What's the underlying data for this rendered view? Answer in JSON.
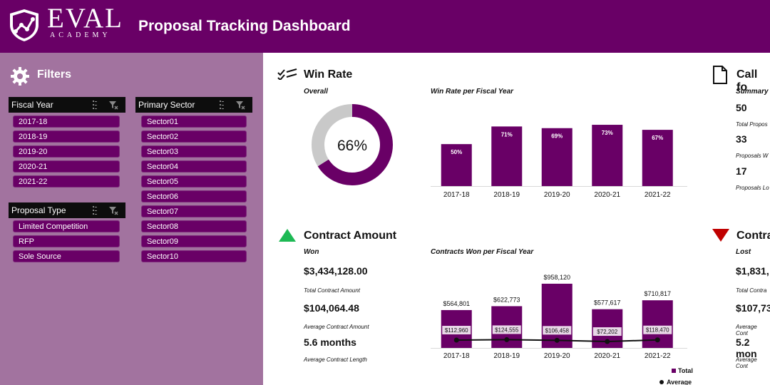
{
  "header": {
    "logo_main": "EVAL",
    "logo_sub": "ACADEMY",
    "title": "Proposal Tracking Dashboard"
  },
  "colors": {
    "purple": "#690066",
    "sidebar": "#a2739f",
    "grey": "#c9c9c9",
    "green": "#1db954",
    "red": "#c00000"
  },
  "filters": {
    "title": "Filters",
    "fiscal_year": {
      "label": "Fiscal Year",
      "items": [
        "2017-18",
        "2018-19",
        "2019-20",
        "2020-21",
        "2021-22"
      ]
    },
    "proposal_type": {
      "label": "Proposal Type",
      "items": [
        "Limited Competition",
        "RFP",
        "Sole Source"
      ]
    },
    "primary_sector": {
      "label": "Primary Sector",
      "items": [
        "Sector01",
        "Sector02",
        "Sector03",
        "Sector04",
        "Sector05",
        "Sector06",
        "Sector07",
        "Sector08",
        "Sector09",
        "Sector10"
      ]
    }
  },
  "win_rate": {
    "title": "Win Rate",
    "overall_label": "Overall",
    "overall_value": "66%",
    "chart_title": "Win Rate per Fiscal Year"
  },
  "call_for": {
    "title": "Call fo",
    "summary_label": "Summary",
    "total_value": "50",
    "total_label": "Total Propos",
    "won_value": "33",
    "won_label": "Proposals W",
    "lost_value": "17",
    "lost_label": "Proposals Lo"
  },
  "contract_amount": {
    "title": "Contract Amount",
    "won_label": "Won",
    "total_value": "$3,434,128.00",
    "total_label": "Total Contract Amount",
    "avg_value": "$104,064.48",
    "avg_label": "Average Contract Amount",
    "length_value": "5.6 months",
    "length_label": "Average Contract Length",
    "chart_title": "Contracts Won per Fiscal Year"
  },
  "contract_lost": {
    "title": "Contra",
    "lost_label": "Lost",
    "total_value": "$1,831,",
    "total_label": "Total Contra",
    "avg_value": "$107,73",
    "avg_label": "Average Cont",
    "length_value": "5.2 mon",
    "length_label": "Average Cont"
  },
  "chart_data": [
    {
      "type": "pie",
      "subtitle": "Overall",
      "values": [
        66,
        34
      ],
      "center_label": "66%"
    },
    {
      "type": "bar",
      "title": "Win Rate per Fiscal Year",
      "categories": [
        "2017-18",
        "2018-19",
        "2019-20",
        "2020-21",
        "2021-22"
      ],
      "values": [
        50,
        71,
        69,
        73,
        67
      ],
      "labels": [
        "50%",
        "71%",
        "69%",
        "73%",
        "67%"
      ],
      "ylim": [
        0,
        100
      ]
    },
    {
      "type": "bar",
      "title": "Contracts Won per Fiscal Year",
      "categories": [
        "2017-18",
        "2018-19",
        "2019-20",
        "2020-21",
        "2021-22"
      ],
      "series": [
        {
          "name": "Total",
          "values": [
            564801,
            622773,
            958120,
            577617,
            710817
          ],
          "labels": [
            "$564,801",
            "$622,773",
            "$958,120",
            "$577,617",
            "$710,817"
          ]
        },
        {
          "name": "Average",
          "values": [
            112960,
            124555,
            106458,
            72202,
            118470
          ],
          "labels": [
            "$112,960",
            "$124,555",
            "$106,458",
            "$72,202",
            "$118,470"
          ]
        }
      ],
      "legend": "bottom-right",
      "ylim": [
        0,
        1000000
      ]
    }
  ]
}
